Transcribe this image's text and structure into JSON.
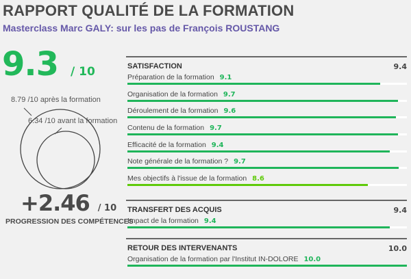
{
  "header": {
    "title": "RAPPORT QUALITÉ DE LA FORMATION",
    "subtitle": "Masterclass Marc GALY: sur les pas de François ROUSTANG"
  },
  "overall": {
    "score": "9.3",
    "denominator": "/ 10"
  },
  "circles": {
    "after_label": "8.79 /10 après la formation",
    "before_label": "6.34 /10 avant la formation",
    "after_value": 8.79,
    "before_value": 6.34
  },
  "progression": {
    "value": "+2.46",
    "denominator": "/ 10",
    "label": "PROGRESSION DES COMPÉTENCES"
  },
  "colors": {
    "primary_green": "#1fb55a",
    "lime_green": "#5fca0a",
    "subtitle_purple": "#6558a8",
    "track": "#ffffff"
  },
  "sections": [
    {
      "name": "SATISFACTION",
      "score": "9.4",
      "items": [
        {
          "label": "Préparation de la formation",
          "value": "9.1",
          "pct": 90.5,
          "color": "#1fb55a"
        },
        {
          "label": "Organisation de la formation",
          "value": "9.7",
          "pct": 96.8,
          "color": "#1fb55a"
        },
        {
          "label": "Déroulement de la formation",
          "value": "9.6",
          "pct": 96.0,
          "color": "#1fb55a"
        },
        {
          "label": "Contenu de la formation",
          "value": "9.7",
          "pct": 96.8,
          "color": "#1fb55a"
        },
        {
          "label": "Efficacité de la formation",
          "value": "9.4",
          "pct": 93.8,
          "color": "#1fb55a"
        },
        {
          "label": "Note générale de la formation ?",
          "value": "9.7",
          "pct": 97.1,
          "color": "#1fb55a"
        },
        {
          "label": "Mes objectifs à l'issue de la formation",
          "value": "8.6",
          "pct": 86.0,
          "color": "#5fca0a"
        }
      ]
    },
    {
      "name": "TRANSFERT DES ACQUIS",
      "score": "9.4",
      "items": [
        {
          "label": "Impact de la formation",
          "value": "9.4",
          "pct": 93.8,
          "color": "#1fb55a"
        }
      ]
    },
    {
      "name": "RETOUR DES INTERVENANTS",
      "score": "10.0",
      "items": [
        {
          "label": "Organisation de la formation par l'Institut IN-DOLORE",
          "value": "10.0",
          "pct": 100,
          "color": "#1fb55a"
        }
      ]
    }
  ],
  "chart_data": [
    {
      "type": "bar",
      "orientation": "horizontal",
      "title": "SATISFACTION",
      "section_score": 9.4,
      "categories": [
        "Préparation de la formation",
        "Organisation de la formation",
        "Déroulement de la formation",
        "Contenu de la formation",
        "Efficacité de la formation",
        "Note générale de la formation ?",
        "Mes objectifs à l'issue de la formation"
      ],
      "values": [
        9.1,
        9.7,
        9.6,
        9.7,
        9.4,
        9.7,
        8.6
      ],
      "xlim": [
        0,
        10
      ]
    },
    {
      "type": "bar",
      "orientation": "horizontal",
      "title": "TRANSFERT DES ACQUIS",
      "section_score": 9.4,
      "categories": [
        "Impact de la formation"
      ],
      "values": [
        9.4
      ],
      "xlim": [
        0,
        10
      ]
    },
    {
      "type": "bar",
      "orientation": "horizontal",
      "title": "RETOUR DES INTERVENANTS",
      "section_score": 10.0,
      "categories": [
        "Organisation de la formation par l'Institut IN-DOLORE"
      ],
      "values": [
        10.0
      ],
      "xlim": [
        0,
        10
      ]
    },
    {
      "type": "circle-comparison",
      "title": "Progression des compétences",
      "series": [
        {
          "name": "après la formation",
          "value": 8.79
        },
        {
          "name": "avant la formation",
          "value": 6.34
        }
      ],
      "difference": 2.46,
      "scale": 10
    }
  ]
}
